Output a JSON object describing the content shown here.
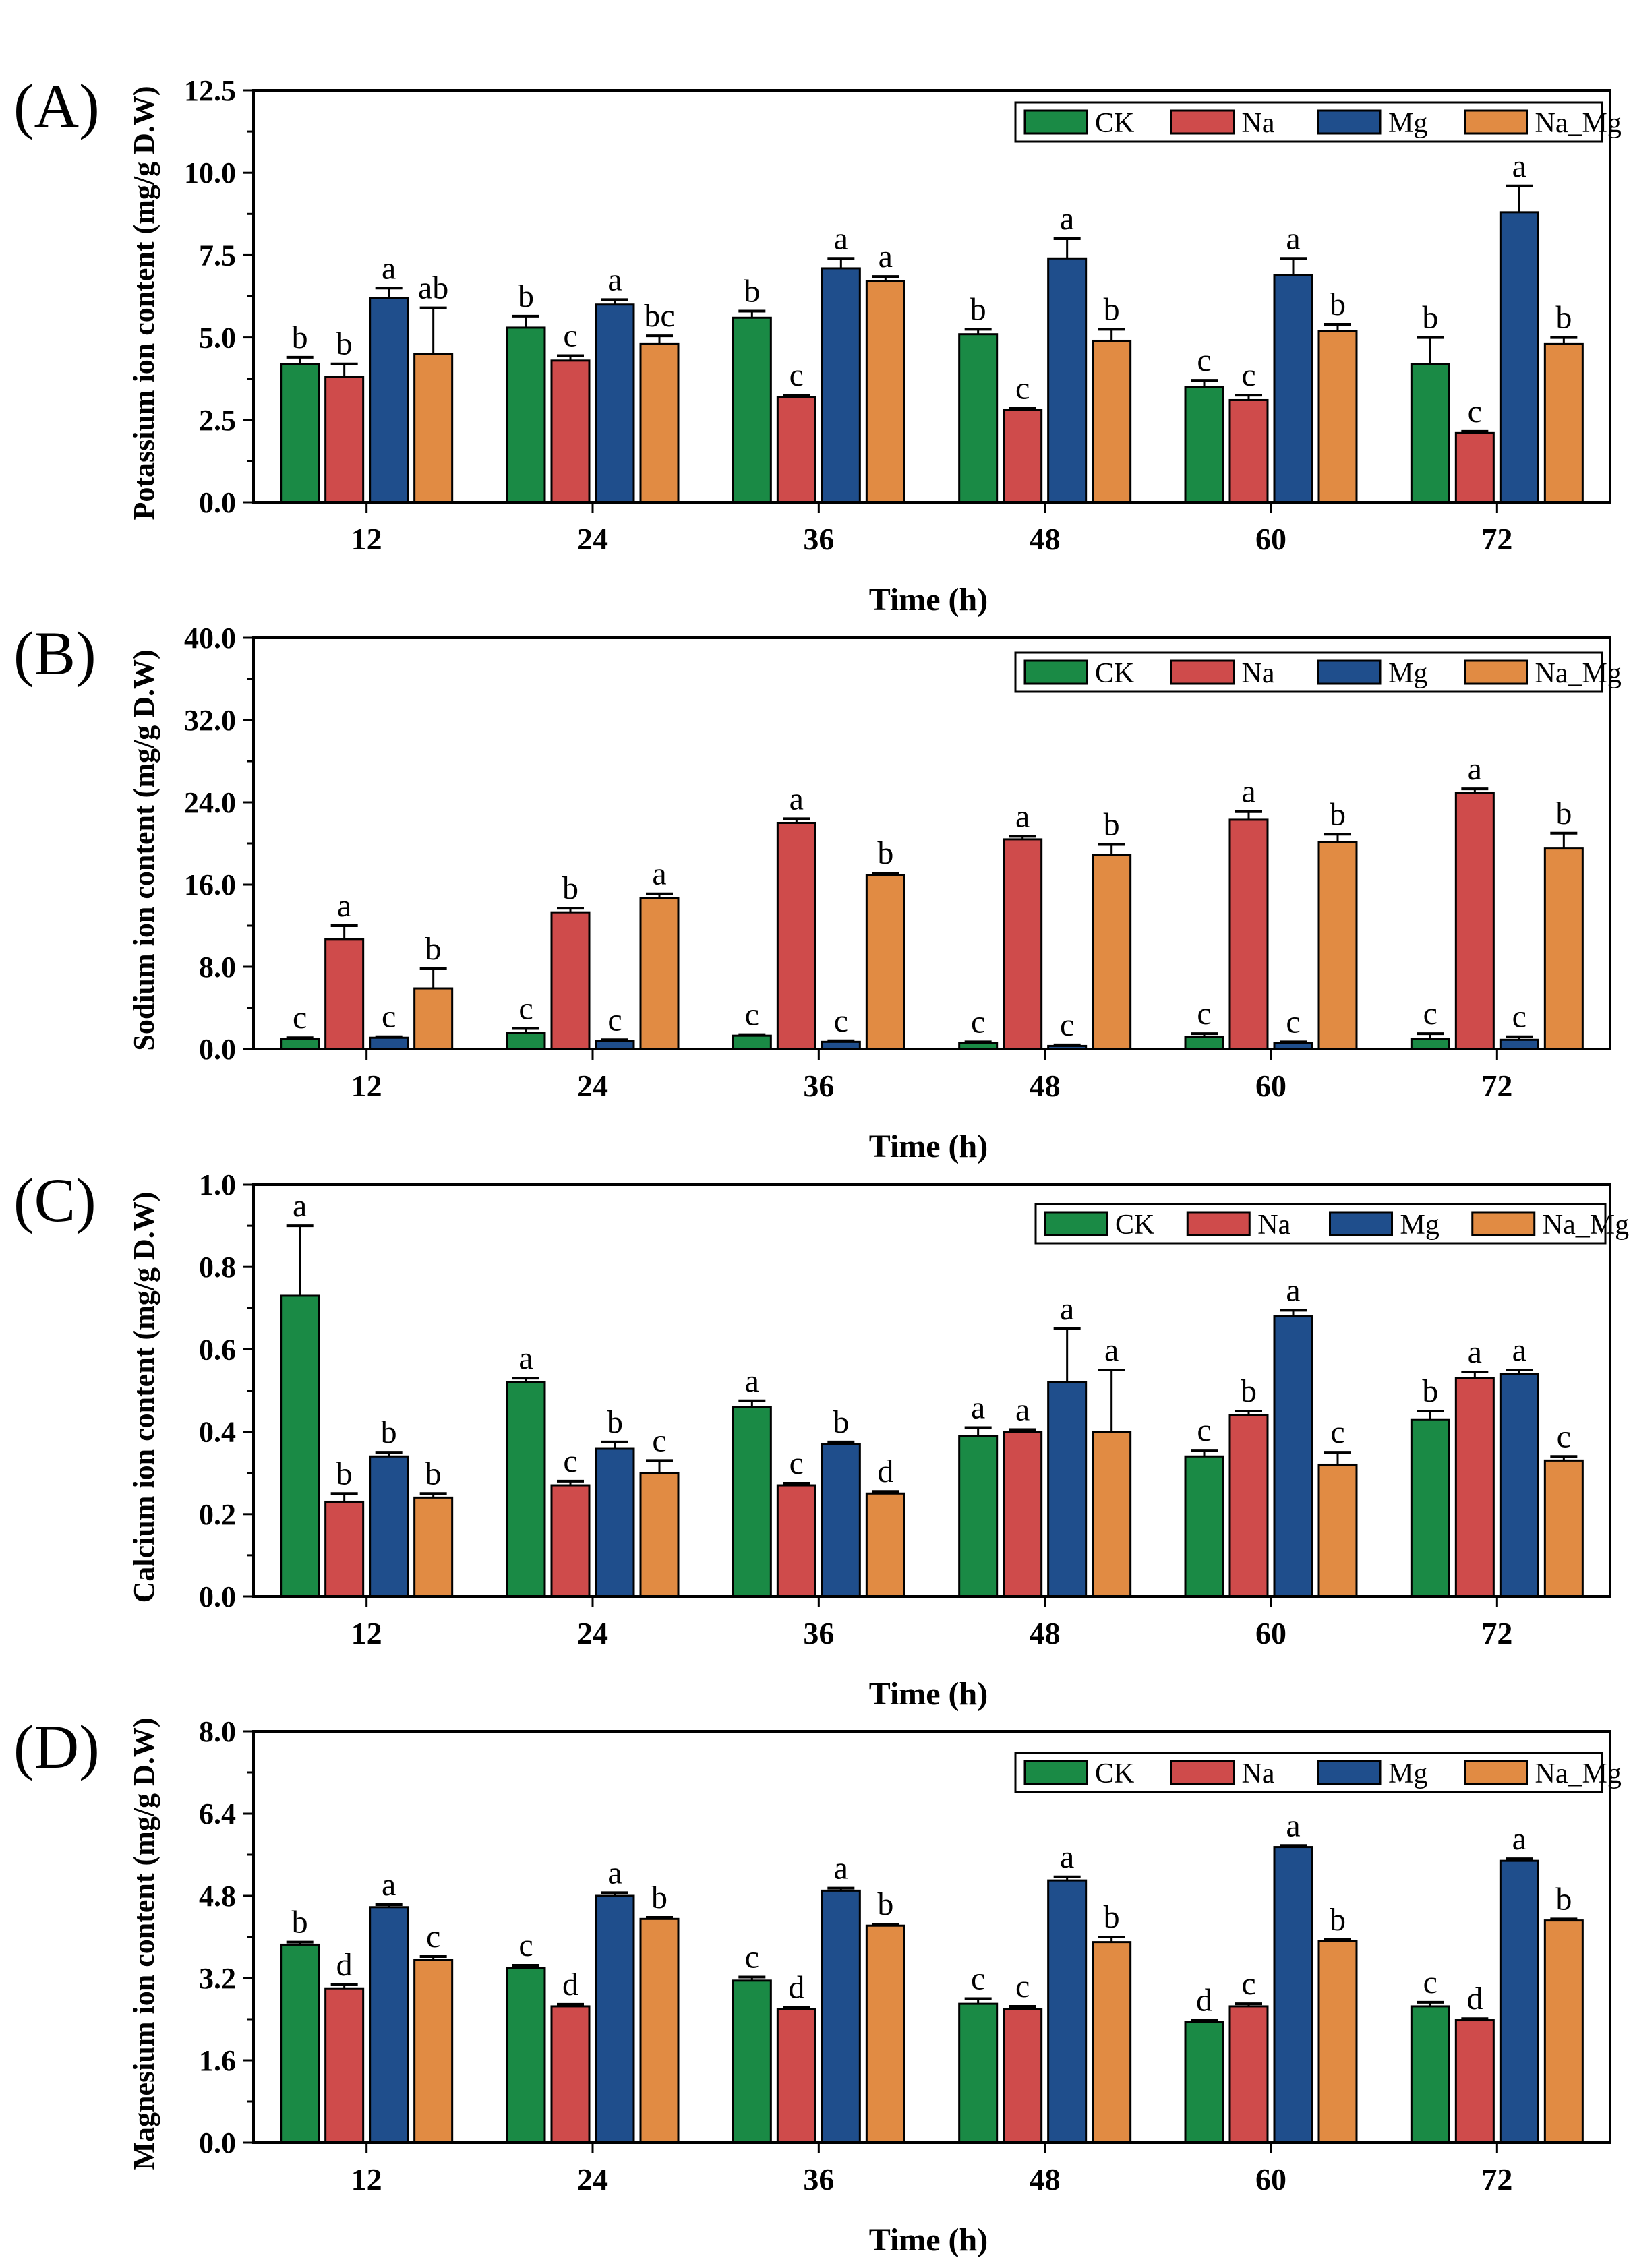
{
  "colors": {
    "CK": "#1a8a45",
    "Na": "#cf4b4b",
    "Mg": "#1f4e8c",
    "Na_Mg": "#e18b43"
  },
  "chart_data": [
    {
      "panel": "(A)",
      "type": "bar",
      "ylabel": "Potassium ion content (mg/g D.W)",
      "xlabel": "Time (h)",
      "ylim": [
        0,
        12.5
      ],
      "yticks": [
        "0.0",
        "2.5",
        "5.0",
        "7.5",
        "10.0",
        "12.5"
      ],
      "categories": [
        "12",
        "24",
        "36",
        "48",
        "60",
        "72"
      ],
      "series": [
        {
          "name": "CK",
          "values": [
            4.2,
            5.3,
            5.6,
            5.1,
            3.5,
            4.2
          ],
          "errors": [
            0.2,
            0.35,
            0.2,
            0.15,
            0.2,
            0.8
          ],
          "letters": [
            "b",
            "b",
            "b",
            "b",
            "c",
            "b"
          ]
        },
        {
          "name": "Na",
          "values": [
            3.8,
            4.3,
            3.2,
            2.8,
            3.1,
            2.1
          ],
          "errors": [
            0.4,
            0.15,
            0.05,
            0.05,
            0.15,
            0.05
          ],
          "letters": [
            "b",
            "c",
            "c",
            "c",
            "c",
            "c"
          ]
        },
        {
          "name": "Mg",
          "values": [
            6.2,
            6.0,
            7.1,
            7.4,
            6.9,
            8.8
          ],
          "errors": [
            0.3,
            0.15,
            0.3,
            0.6,
            0.5,
            0.8
          ],
          "letters": [
            "a",
            "a",
            "a",
            "a",
            "a",
            "a"
          ]
        },
        {
          "name": "Na_Mg",
          "values": [
            4.5,
            4.8,
            6.7,
            4.9,
            5.2,
            4.8
          ],
          "errors": [
            1.4,
            0.25,
            0.15,
            0.35,
            0.2,
            0.2
          ],
          "letters": [
            "ab",
            "bc",
            "a",
            "b",
            "b",
            "b"
          ]
        }
      ]
    },
    {
      "panel": "(B)",
      "type": "bar",
      "ylabel": "Sodium ion content (mg/g D.W)",
      "xlabel": "Time (h)",
      "ylim": [
        0,
        40
      ],
      "yticks": [
        "0.0",
        "8.0",
        "16.0",
        "24.0",
        "32.0",
        "40.0"
      ],
      "categories": [
        "12",
        "24",
        "36",
        "48",
        "60",
        "72"
      ],
      "series": [
        {
          "name": "CK",
          "values": [
            1.0,
            1.6,
            1.3,
            0.6,
            1.2,
            1.0
          ],
          "errors": [
            0.1,
            0.4,
            0.1,
            0.1,
            0.3,
            0.5
          ],
          "letters": [
            "c",
            "c",
            "c",
            "c",
            "c",
            "c"
          ]
        },
        {
          "name": "Na",
          "values": [
            10.7,
            13.3,
            22.0,
            20.4,
            22.3,
            24.9
          ],
          "errors": [
            1.3,
            0.4,
            0.4,
            0.3,
            0.8,
            0.4
          ],
          "letters": [
            "a",
            "b",
            "a",
            "a",
            "a",
            "a"
          ]
        },
        {
          "name": "Mg",
          "values": [
            1.1,
            0.8,
            0.7,
            0.3,
            0.6,
            0.9
          ],
          "errors": [
            0.1,
            0.1,
            0.1,
            0.1,
            0.1,
            0.3
          ],
          "letters": [
            "c",
            "c",
            "c",
            "c",
            "c",
            "c"
          ]
        },
        {
          "name": "Na_Mg",
          "values": [
            5.9,
            14.7,
            16.9,
            18.9,
            20.1,
            19.5
          ],
          "errors": [
            1.9,
            0.4,
            0.2,
            1.0,
            0.8,
            1.5
          ],
          "letters": [
            "b",
            "a",
            "b",
            "b",
            "b",
            "b"
          ]
        }
      ]
    },
    {
      "panel": "(C)",
      "type": "bar",
      "ylabel": "Calcium ion content (mg/g D.W)",
      "xlabel": "Time (h)",
      "ylim": [
        0,
        1.0
      ],
      "yticks": [
        "0.0",
        "0.2",
        "0.4",
        "0.6",
        "0.8",
        "1.0"
      ],
      "categories": [
        "12",
        "24",
        "36",
        "48",
        "60",
        "72"
      ],
      "series": [
        {
          "name": "CK",
          "values": [
            0.73,
            0.52,
            0.46,
            0.39,
            0.34,
            0.43
          ],
          "errors": [
            0.17,
            0.01,
            0.015,
            0.02,
            0.015,
            0.02
          ],
          "letters": [
            "a",
            "a",
            "a",
            "a",
            "c",
            "b"
          ]
        },
        {
          "name": "Na",
          "values": [
            0.23,
            0.27,
            0.27,
            0.4,
            0.44,
            0.53
          ],
          "errors": [
            0.02,
            0.01,
            0.005,
            0.005,
            0.01,
            0.015
          ],
          "letters": [
            "b",
            "c",
            "c",
            "a",
            "b",
            "a"
          ]
        },
        {
          "name": "Mg",
          "values": [
            0.34,
            0.36,
            0.37,
            0.52,
            0.68,
            0.54
          ],
          "errors": [
            0.01,
            0.015,
            0.005,
            0.13,
            0.015,
            0.01
          ],
          "letters": [
            "b",
            "b",
            "b",
            "a",
            "a",
            "a"
          ]
        },
        {
          "name": "Na_Mg",
          "values": [
            0.24,
            0.3,
            0.25,
            0.4,
            0.32,
            0.33
          ],
          "errors": [
            0.01,
            0.03,
            0.005,
            0.15,
            0.03,
            0.01
          ],
          "letters": [
            "b",
            "c",
            "d",
            "a",
            "c",
            "c"
          ]
        }
      ]
    },
    {
      "panel": "(D)",
      "type": "bar",
      "ylabel": "Magnesium ion content (mg/g D.W)",
      "xlabel": "Time (h)",
      "ylim": [
        0,
        8.0
      ],
      "yticks": [
        "0.0",
        "1.6",
        "3.2",
        "4.8",
        "6.4",
        "8.0"
      ],
      "categories": [
        "12",
        "24",
        "36",
        "48",
        "60",
        "72"
      ],
      "series": [
        {
          "name": "CK",
          "values": [
            3.85,
            3.4,
            3.15,
            2.7,
            2.35,
            2.65
          ],
          "errors": [
            0.05,
            0.05,
            0.07,
            0.1,
            0.03,
            0.08
          ],
          "letters": [
            "b",
            "c",
            "c",
            "c",
            "d",
            "c"
          ]
        },
        {
          "name": "Na",
          "values": [
            3.0,
            2.65,
            2.6,
            2.6,
            2.65,
            2.38
          ],
          "errors": [
            0.07,
            0.04,
            0.03,
            0.05,
            0.05,
            0.03
          ],
          "letters": [
            "d",
            "d",
            "d",
            "c",
            "c",
            "d"
          ]
        },
        {
          "name": "Mg",
          "values": [
            4.58,
            4.8,
            4.9,
            5.1,
            5.75,
            5.48
          ],
          "errors": [
            0.05,
            0.06,
            0.05,
            0.07,
            0.03,
            0.04
          ],
          "letters": [
            "a",
            "a",
            "a",
            "a",
            "a",
            "a"
          ]
        },
        {
          "name": "Na_Mg",
          "values": [
            3.55,
            4.35,
            4.22,
            3.9,
            3.92,
            4.32
          ],
          "errors": [
            0.07,
            0.03,
            0.03,
            0.1,
            0.03,
            0.03
          ],
          "letters": [
            "c",
            "b",
            "b",
            "b",
            "b",
            "b"
          ]
        }
      ]
    }
  ]
}
